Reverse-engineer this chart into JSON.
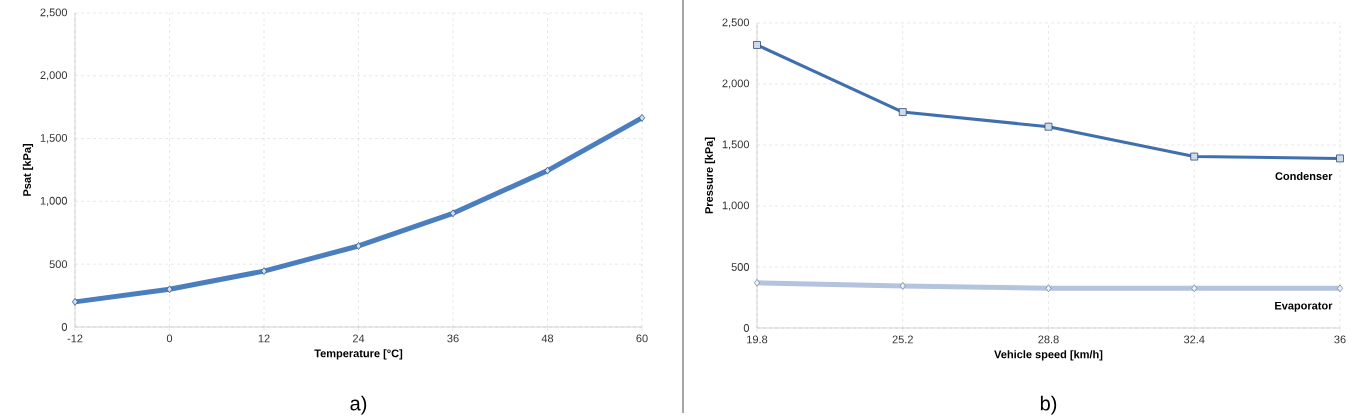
{
  "chart_data": [
    {
      "type": "line",
      "xlabel": "Temperature [°C]",
      "ylabel": "Psat [kPa]",
      "x": [
        -12,
        0,
        12,
        24,
        36,
        48,
        60
      ],
      "series": [
        {
          "color": "#4a7ebf",
          "marker": "diamond",
          "values": [
            200,
            300,
            445,
            645,
            905,
            1245,
            1665
          ]
        }
      ],
      "xlim": [
        -12,
        60
      ],
      "xticks": [
        -12,
        0,
        12,
        24,
        36,
        48,
        60
      ],
      "ylim": [
        0,
        2500
      ],
      "yticks": [
        0,
        500,
        {
          "value": 1000,
          "label": "1,000"
        },
        {
          "value": 1500,
          "label": "1,500"
        },
        {
          "value": 2000,
          "label": "2,000"
        },
        {
          "value": 2500,
          "label": "2,500"
        }
      ],
      "grid": true,
      "legend": false,
      "annotations": [
        "a)"
      ]
    },
    {
      "type": "line",
      "xlabel": "Vehicle speed [km/h]",
      "ylabel": "Pressure [kPa]",
      "categories": [
        "19.8",
        "25.2",
        "28.8",
        "32.4",
        "36"
      ],
      "series": [
        {
          "name": "Condenser",
          "color": "#3f6fad",
          "marker": "square",
          "values": [
            2320,
            1770,
            1650,
            1405,
            1390
          ]
        },
        {
          "name": "Evaporator",
          "color": "#b4c3de",
          "marker": "diamond",
          "values": [
            370,
            345,
            325,
            325,
            325
          ]
        }
      ],
      "ylim": [
        0,
        2500
      ],
      "yticks": [
        0,
        500,
        {
          "value": 1000,
          "label": "1,000"
        },
        {
          "value": 1500,
          "label": "1,500"
        },
        {
          "value": 2000,
          "label": "2,000"
        },
        {
          "value": 2500,
          "label": "2,500"
        }
      ],
      "grid": true,
      "legend": false,
      "annotations": [
        "b)"
      ]
    }
  ]
}
